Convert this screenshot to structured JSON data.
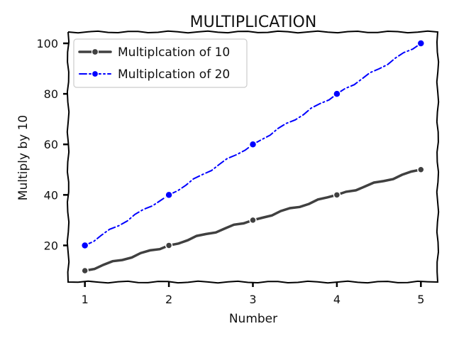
{
  "chart_data": {
    "type": "line",
    "title": "MULTIPLICATION",
    "xlabel": "Number",
    "ylabel": "Multiply by 10",
    "x": [
      1,
      2,
      3,
      4,
      5
    ],
    "xlim": [
      0.8,
      5.2
    ],
    "ylim": [
      5.5,
      104.5
    ],
    "yticks": [
      20,
      40,
      60,
      80,
      100
    ],
    "grid": false,
    "legend_position": "upper-left",
    "series": [
      {
        "name": "Multiplcation of 10",
        "values": [
          10,
          20,
          30,
          40,
          50
        ],
        "color": "#404040",
        "line_style": "solid",
        "marker": "circle"
      },
      {
        "name": "Multiplcation of 20",
        "values": [
          20,
          40,
          60,
          80,
          100
        ],
        "color": "#0000ff",
        "line_style": "dash-dot",
        "marker": "circle"
      }
    ]
  }
}
